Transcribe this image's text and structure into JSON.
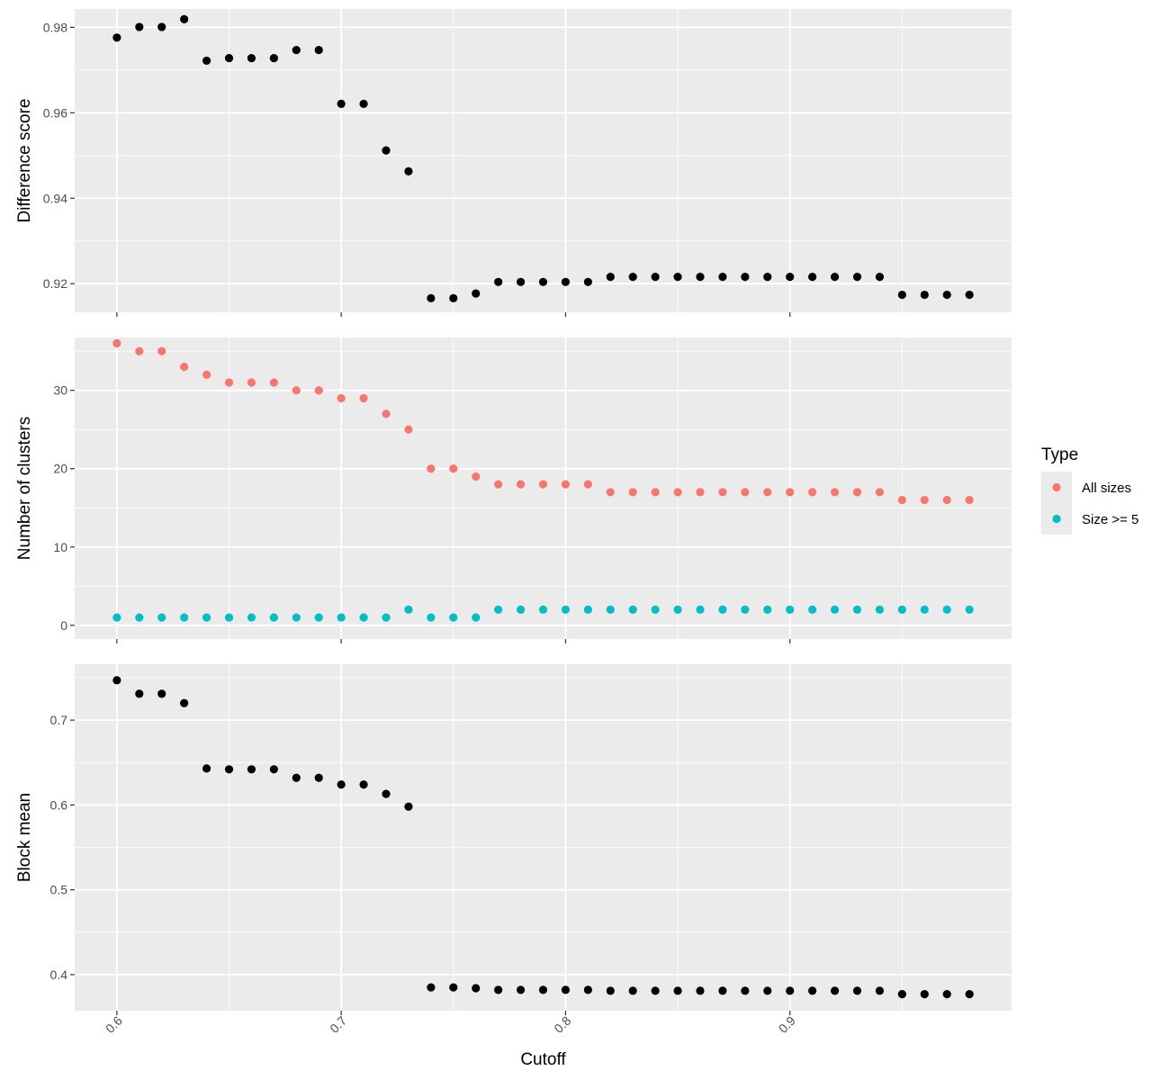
{
  "chart_data": {
    "type": "scatter",
    "xlabel": "Cutoff",
    "x_ticks": [
      0.6,
      0.7,
      0.8,
      0.9
    ],
    "x_tick_labels": [
      "0.6",
      "0.7",
      "0.8",
      "0.9"
    ],
    "xlim": [
      0.5812,
      0.9988
    ],
    "x": [
      0.6,
      0.61,
      0.62,
      0.63,
      0.64,
      0.65,
      0.66,
      0.67,
      0.68,
      0.69,
      0.7,
      0.71,
      0.72,
      0.73,
      0.74,
      0.75,
      0.76,
      0.77,
      0.78,
      0.79,
      0.8,
      0.81,
      0.82,
      0.83,
      0.84,
      0.85,
      0.86,
      0.87,
      0.88,
      0.89,
      0.9,
      0.91,
      0.92,
      0.93,
      0.94,
      0.95,
      0.96,
      0.97,
      0.98
    ],
    "background_color": "#ebebeb",
    "grid_color": "#ffffff",
    "grid": true,
    "panels": [
      {
        "ylabel": "Difference score",
        "ylim": [
          0.9133,
          0.9843
        ],
        "y_ticks": [
          0.92,
          0.94,
          0.96,
          0.98
        ],
        "y_tick_labels": [
          "0.92",
          "0.94",
          "0.96",
          "0.98"
        ],
        "series": [
          {
            "color": "#000000",
            "values": [
              0.9776,
              0.9801,
              0.9801,
              0.9819,
              0.9722,
              0.9728,
              0.9728,
              0.9728,
              0.9747,
              0.9747,
              0.9621,
              0.9621,
              0.9512,
              0.9463,
              0.9166,
              0.9166,
              0.9177,
              0.9204,
              0.9204,
              0.9204,
              0.9204,
              0.9204,
              0.9216,
              0.9216,
              0.9216,
              0.9216,
              0.9216,
              0.9216,
              0.9216,
              0.9216,
              0.9216,
              0.9216,
              0.9216,
              0.9216,
              0.9216,
              0.9174,
              0.9174,
              0.9174,
              0.9174
            ]
          }
        ]
      },
      {
        "ylabel": "Number of clusters",
        "ylim": [
          -1.75,
          36.75
        ],
        "y_ticks": [
          0,
          10,
          20,
          30
        ],
        "y_tick_labels": [
          "0",
          "10",
          "20",
          "30"
        ],
        "series": [
          {
            "name": "All sizes",
            "color": "#f8766d",
            "values": [
              36,
              35,
              35,
              33,
              32,
              31,
              31,
              31,
              30,
              30,
              29,
              29,
              27,
              25,
              20,
              20,
              19,
              18,
              18,
              18,
              18,
              18,
              17,
              17,
              17,
              17,
              17,
              17,
              17,
              17,
              17,
              17,
              17,
              17,
              17,
              16,
              16,
              16,
              16
            ]
          },
          {
            "name": "Size >= 5",
            "color": "#00bfc4",
            "values": [
              1,
              1,
              1,
              1,
              1,
              1,
              1,
              1,
              1,
              1,
              1,
              1,
              1,
              2,
              1,
              1,
              1,
              2,
              2,
              2,
              2,
              2,
              2,
              2,
              2,
              2,
              2,
              2,
              2,
              2,
              2,
              2,
              2,
              2,
              2,
              2,
              2,
              2,
              2
            ]
          }
        ]
      },
      {
        "ylabel": "Block mean",
        "ylim": [
          0.3575,
          0.7659
        ],
        "y_ticks": [
          0.4,
          0.5,
          0.6,
          0.7
        ],
        "y_tick_labels": [
          "0.4",
          "0.5",
          "0.6",
          "0.7"
        ],
        "series": [
          {
            "color": "#000000",
            "values": [
              0.747,
              0.731,
              0.731,
              0.72,
              0.643,
              0.642,
              0.642,
              0.642,
              0.632,
              0.632,
              0.624,
              0.624,
              0.613,
              0.598,
              0.385,
              0.385,
              0.384,
              0.382,
              0.382,
              0.382,
              0.382,
              0.382,
              0.381,
              0.381,
              0.381,
              0.381,
              0.381,
              0.381,
              0.381,
              0.381,
              0.381,
              0.381,
              0.381,
              0.381,
              0.381,
              0.377,
              0.377,
              0.377,
              0.377
            ]
          }
        ]
      }
    ],
    "legend": {
      "title": "Type",
      "position": "right",
      "entries": [
        {
          "label": "All sizes",
          "color": "#f8766d"
        },
        {
          "label": "Size >= 5",
          "color": "#00bfc4"
        }
      ]
    }
  }
}
